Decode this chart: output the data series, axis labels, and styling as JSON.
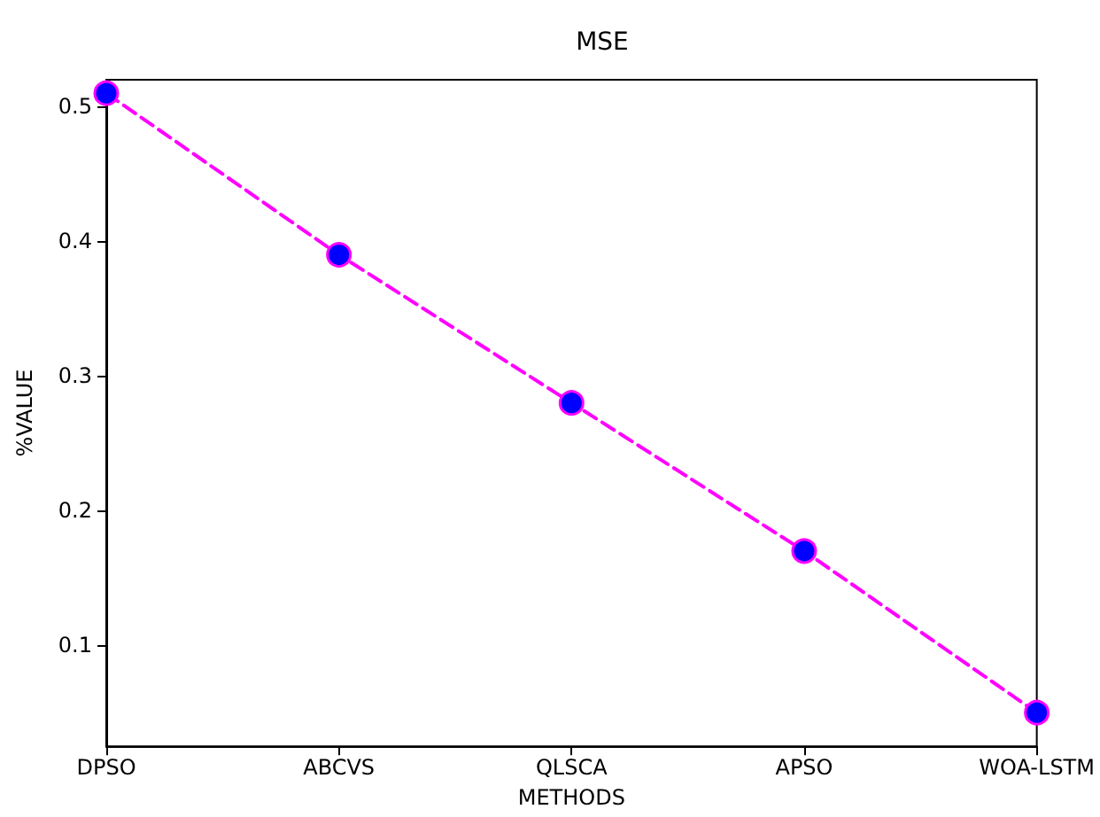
{
  "chart_data": {
    "type": "line",
    "title": "MSE",
    "xlabel": "METHODS",
    "ylabel": "%VALUE",
    "categories": [
      "DPSO",
      "ABCVS",
      "QLSCA",
      "APSO",
      "WOA-LSTM"
    ],
    "series": [
      {
        "color": "#ff00ff",
        "values": [
          0.51,
          0.39,
          0.28,
          0.17,
          0.05
        ]
      }
    ],
    "ylim": [
      0.025,
      0.52
    ],
    "yticks": [
      0.1,
      0.2,
      0.3,
      0.4,
      0.5
    ],
    "marker": "circle",
    "line_style": "dashed",
    "grid": false
  }
}
